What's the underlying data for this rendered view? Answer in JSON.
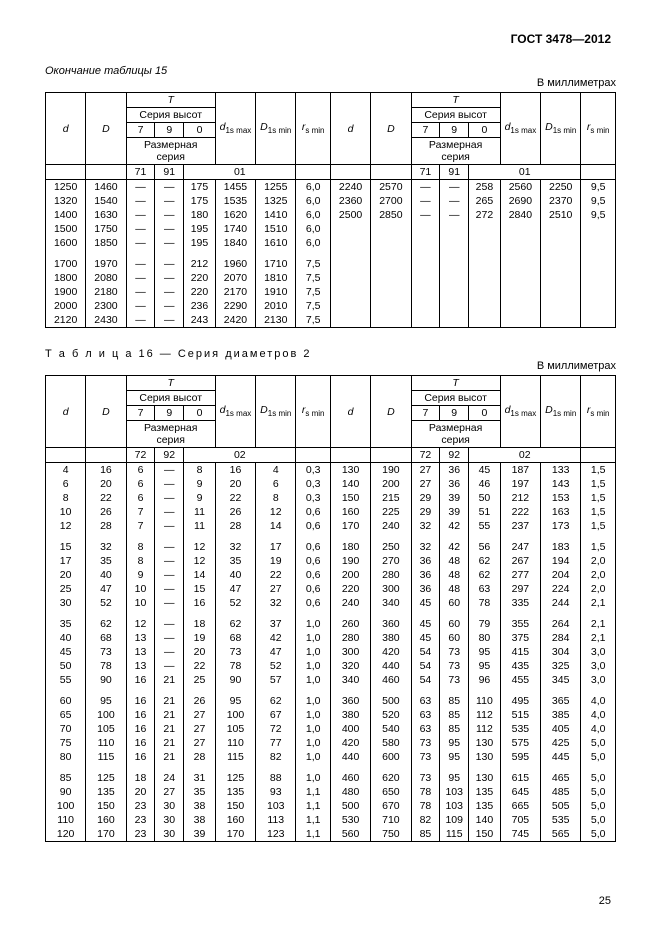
{
  "doc_id": "ГОСТ 3478—2012",
  "cap15": "Окончание таблицы 15",
  "units": "В миллиметрах",
  "t16_caption": "Т а б л и ц а  16 — Серия диаметров 2",
  "hdr": {
    "d": "d",
    "D": "D",
    "T": "T",
    "d1smax": "d₁ₛ ₘₐₓ",
    "D1smin": "D₁ₛ ₘᵢₙ",
    "rsmin": "rₛ ₘᵢₙ",
    "series_h": "Серия высот",
    "series_d": "Размерная серия",
    "c7": "7",
    "c9": "9",
    "c0": "0",
    "c71": "71",
    "c91": "91",
    "c01": "01",
    "c72": "72",
    "c92": "92",
    "c02": "02"
  },
  "t15": {
    "left": [
      {
        "d": "1250",
        "D": "1460",
        "c71": "—",
        "c91": "—",
        "c01": "175",
        "d1": "1455",
        "D1": "1255",
        "r": "6,0",
        "g": true
      },
      {
        "d": "1320",
        "D": "1540",
        "c71": "—",
        "c91": "—",
        "c01": "175",
        "d1": "1535",
        "D1": "1325",
        "r": "6,0"
      },
      {
        "d": "1400",
        "D": "1630",
        "c71": "—",
        "c91": "—",
        "c01": "180",
        "d1": "1620",
        "D1": "1410",
        "r": "6,0"
      },
      {
        "d": "1500",
        "D": "1750",
        "c71": "—",
        "c91": "—",
        "c01": "195",
        "d1": "1740",
        "D1": "1510",
        "r": "6,0"
      },
      {
        "d": "1600",
        "D": "1850",
        "c71": "—",
        "c91": "—",
        "c01": "195",
        "d1": "1840",
        "D1": "1610",
        "r": "6,0"
      },
      {
        "sp": true
      },
      {
        "d": "1700",
        "D": "1970",
        "c71": "—",
        "c91": "—",
        "c01": "212",
        "d1": "1960",
        "D1": "1710",
        "r": "7,5"
      },
      {
        "d": "1800",
        "D": "2080",
        "c71": "—",
        "c91": "—",
        "c01": "220",
        "d1": "2070",
        "D1": "1810",
        "r": "7,5"
      },
      {
        "d": "1900",
        "D": "2180",
        "c71": "—",
        "c91": "—",
        "c01": "220",
        "d1": "2170",
        "D1": "1910",
        "r": "7,5"
      },
      {
        "d": "2000",
        "D": "2300",
        "c71": "—",
        "c91": "—",
        "c01": "236",
        "d1": "2290",
        "D1": "2010",
        "r": "7,5"
      },
      {
        "d": "2120",
        "D": "2430",
        "c71": "—",
        "c91": "—",
        "c01": "243",
        "d1": "2420",
        "D1": "2130",
        "r": "7,5",
        "last": true
      }
    ],
    "right": [
      {
        "d": "2240",
        "D": "2570",
        "c71": "—",
        "c91": "—",
        "c01": "258",
        "d1": "2560",
        "D1": "2250",
        "r": "9,5",
        "g": true
      },
      {
        "d": "2360",
        "D": "2700",
        "c71": "—",
        "c91": "—",
        "c01": "265",
        "d1": "2690",
        "D1": "2370",
        "r": "9,5"
      },
      {
        "d": "2500",
        "D": "2850",
        "c71": "—",
        "c91": "—",
        "c01": "272",
        "d1": "2840",
        "D1": "2510",
        "r": "9,5"
      },
      {
        "d": "",
        "D": "",
        "c71": "",
        "c91": "",
        "c01": "",
        "d1": "",
        "D1": "",
        "r": ""
      },
      {
        "d": "",
        "D": "",
        "c71": "",
        "c91": "",
        "c01": "",
        "d1": "",
        "D1": "",
        "r": ""
      },
      {
        "sp": true
      },
      {
        "d": "",
        "D": "",
        "c71": "",
        "c91": "",
        "c01": "",
        "d1": "",
        "D1": "",
        "r": ""
      },
      {
        "d": "",
        "D": "",
        "c71": "",
        "c91": "",
        "c01": "",
        "d1": "",
        "D1": "",
        "r": ""
      },
      {
        "d": "",
        "D": "",
        "c71": "",
        "c91": "",
        "c01": "",
        "d1": "",
        "D1": "",
        "r": ""
      },
      {
        "d": "",
        "D": "",
        "c71": "",
        "c91": "",
        "c01": "",
        "d1": "",
        "D1": "",
        "r": ""
      },
      {
        "d": "",
        "D": "",
        "c71": "",
        "c91": "",
        "c01": "",
        "d1": "",
        "D1": "",
        "r": "",
        "last": true
      }
    ]
  },
  "t16": {
    "left": [
      {
        "d": "4",
        "D": "16",
        "c72": "6",
        "c92": "—",
        "c02": "8",
        "d1": "16",
        "D1": "4",
        "r": "0,3",
        "g": true
      },
      {
        "d": "6",
        "D": "20",
        "c72": "6",
        "c92": "—",
        "c02": "9",
        "d1": "20",
        "D1": "6",
        "r": "0,3"
      },
      {
        "d": "8",
        "D": "22",
        "c72": "6",
        "c92": "—",
        "c02": "9",
        "d1": "22",
        "D1": "8",
        "r": "0,3"
      },
      {
        "d": "10",
        "D": "26",
        "c72": "7",
        "c92": "—",
        "c02": "11",
        "d1": "26",
        "D1": "12",
        "r": "0,6"
      },
      {
        "d": "12",
        "D": "28",
        "c72": "7",
        "c92": "—",
        "c02": "11",
        "d1": "28",
        "D1": "14",
        "r": "0,6"
      },
      {
        "sp": true
      },
      {
        "d": "15",
        "D": "32",
        "c72": "8",
        "c92": "—",
        "c02": "12",
        "d1": "32",
        "D1": "17",
        "r": "0,6"
      },
      {
        "d": "17",
        "D": "35",
        "c72": "8",
        "c92": "—",
        "c02": "12",
        "d1": "35",
        "D1": "19",
        "r": "0,6"
      },
      {
        "d": "20",
        "D": "40",
        "c72": "9",
        "c92": "—",
        "c02": "14",
        "d1": "40",
        "D1": "22",
        "r": "0,6"
      },
      {
        "d": "25",
        "D": "47",
        "c72": "10",
        "c92": "—",
        "c02": "15",
        "d1": "47",
        "D1": "27",
        "r": "0,6"
      },
      {
        "d": "30",
        "D": "52",
        "c72": "10",
        "c92": "—",
        "c02": "16",
        "d1": "52",
        "D1": "32",
        "r": "0,6"
      },
      {
        "sp": true
      },
      {
        "d": "35",
        "D": "62",
        "c72": "12",
        "c92": "—",
        "c02": "18",
        "d1": "62",
        "D1": "37",
        "r": "1,0"
      },
      {
        "d": "40",
        "D": "68",
        "c72": "13",
        "c92": "—",
        "c02": "19",
        "d1": "68",
        "D1": "42",
        "r": "1,0"
      },
      {
        "d": "45",
        "D": "73",
        "c72": "13",
        "c92": "—",
        "c02": "20",
        "d1": "73",
        "D1": "47",
        "r": "1,0"
      },
      {
        "d": "50",
        "D": "78",
        "c72": "13",
        "c92": "—",
        "c02": "22",
        "d1": "78",
        "D1": "52",
        "r": "1,0"
      },
      {
        "d": "55",
        "D": "90",
        "c72": "16",
        "c92": "21",
        "c02": "25",
        "d1": "90",
        "D1": "57",
        "r": "1,0"
      },
      {
        "sp": true
      },
      {
        "d": "60",
        "D": "95",
        "c72": "16",
        "c92": "21",
        "c02": "26",
        "d1": "95",
        "D1": "62",
        "r": "1,0"
      },
      {
        "d": "65",
        "D": "100",
        "c72": "16",
        "c92": "21",
        "c02": "27",
        "d1": "100",
        "D1": "67",
        "r": "1,0"
      },
      {
        "d": "70",
        "D": "105",
        "c72": "16",
        "c92": "21",
        "c02": "27",
        "d1": "105",
        "D1": "72",
        "r": "1,0"
      },
      {
        "d": "75",
        "D": "110",
        "c72": "16",
        "c92": "21",
        "c02": "27",
        "d1": "110",
        "D1": "77",
        "r": "1,0"
      },
      {
        "d": "80",
        "D": "115",
        "c72": "16",
        "c92": "21",
        "c02": "28",
        "d1": "115",
        "D1": "82",
        "r": "1,0"
      },
      {
        "sp": true
      },
      {
        "d": "85",
        "D": "125",
        "c72": "18",
        "c92": "24",
        "c02": "31",
        "d1": "125",
        "D1": "88",
        "r": "1,0"
      },
      {
        "d": "90",
        "D": "135",
        "c72": "20",
        "c92": "27",
        "c02": "35",
        "d1": "135",
        "D1": "93",
        "r": "1,1"
      },
      {
        "d": "100",
        "D": "150",
        "c72": "23",
        "c92": "30",
        "c02": "38",
        "d1": "150",
        "D1": "103",
        "r": "1,1"
      },
      {
        "d": "110",
        "D": "160",
        "c72": "23",
        "c92": "30",
        "c02": "38",
        "d1": "160",
        "D1": "113",
        "r": "1,1"
      },
      {
        "d": "120",
        "D": "170",
        "c72": "23",
        "c92": "30",
        "c02": "39",
        "d1": "170",
        "D1": "123",
        "r": "1,1",
        "last": true
      }
    ],
    "right": [
      {
        "d": "130",
        "D": "190",
        "c72": "27",
        "c92": "36",
        "c02": "45",
        "d1": "187",
        "D1": "133",
        "r": "1,5",
        "g": true
      },
      {
        "d": "140",
        "D": "200",
        "c72": "27",
        "c92": "36",
        "c02": "46",
        "d1": "197",
        "D1": "143",
        "r": "1,5"
      },
      {
        "d": "150",
        "D": "215",
        "c72": "29",
        "c92": "39",
        "c02": "50",
        "d1": "212",
        "D1": "153",
        "r": "1,5"
      },
      {
        "d": "160",
        "D": "225",
        "c72": "29",
        "c92": "39",
        "c02": "51",
        "d1": "222",
        "D1": "163",
        "r": "1,5"
      },
      {
        "d": "170",
        "D": "240",
        "c72": "32",
        "c92": "42",
        "c02": "55",
        "d1": "237",
        "D1": "173",
        "r": "1,5"
      },
      {
        "sp": true
      },
      {
        "d": "180",
        "D": "250",
        "c72": "32",
        "c92": "42",
        "c02": "56",
        "d1": "247",
        "D1": "183",
        "r": "1,5"
      },
      {
        "d": "190",
        "D": "270",
        "c72": "36",
        "c92": "48",
        "c02": "62",
        "d1": "267",
        "D1": "194",
        "r": "2,0"
      },
      {
        "d": "200",
        "D": "280",
        "c72": "36",
        "c92": "48",
        "c02": "62",
        "d1": "277",
        "D1": "204",
        "r": "2,0"
      },
      {
        "d": "220",
        "D": "300",
        "c72": "36",
        "c92": "48",
        "c02": "63",
        "d1": "297",
        "D1": "224",
        "r": "2,0"
      },
      {
        "d": "240",
        "D": "340",
        "c72": "45",
        "c92": "60",
        "c02": "78",
        "d1": "335",
        "D1": "244",
        "r": "2,1"
      },
      {
        "sp": true
      },
      {
        "d": "260",
        "D": "360",
        "c72": "45",
        "c92": "60",
        "c02": "79",
        "d1": "355",
        "D1": "264",
        "r": "2,1"
      },
      {
        "d": "280",
        "D": "380",
        "c72": "45",
        "c92": "60",
        "c02": "80",
        "d1": "375",
        "D1": "284",
        "r": "2,1"
      },
      {
        "d": "300",
        "D": "420",
        "c72": "54",
        "c92": "73",
        "c02": "95",
        "d1": "415",
        "D1": "304",
        "r": "3,0"
      },
      {
        "d": "320",
        "D": "440",
        "c72": "54",
        "c92": "73",
        "c02": "95",
        "d1": "435",
        "D1": "325",
        "r": "3,0"
      },
      {
        "d": "340",
        "D": "460",
        "c72": "54",
        "c92": "73",
        "c02": "96",
        "d1": "455",
        "D1": "345",
        "r": "3,0"
      },
      {
        "sp": true
      },
      {
        "d": "360",
        "D": "500",
        "c72": "63",
        "c92": "85",
        "c02": "110",
        "d1": "495",
        "D1": "365",
        "r": "4,0"
      },
      {
        "d": "380",
        "D": "520",
        "c72": "63",
        "c92": "85",
        "c02": "112",
        "d1": "515",
        "D1": "385",
        "r": "4,0"
      },
      {
        "d": "400",
        "D": "540",
        "c72": "63",
        "c92": "85",
        "c02": "112",
        "d1": "535",
        "D1": "405",
        "r": "4,0"
      },
      {
        "d": "420",
        "D": "580",
        "c72": "73",
        "c92": "95",
        "c02": "130",
        "d1": "575",
        "D1": "425",
        "r": "5,0"
      },
      {
        "d": "440",
        "D": "600",
        "c72": "73",
        "c92": "95",
        "c02": "130",
        "d1": "595",
        "D1": "445",
        "r": "5,0"
      },
      {
        "sp": true
      },
      {
        "d": "460",
        "D": "620",
        "c72": "73",
        "c92": "95",
        "c02": "130",
        "d1": "615",
        "D1": "465",
        "r": "5,0"
      },
      {
        "d": "480",
        "D": "650",
        "c72": "78",
        "c92": "103",
        "c02": "135",
        "d1": "645",
        "D1": "485",
        "r": "5,0"
      },
      {
        "d": "500",
        "D": "670",
        "c72": "78",
        "c92": "103",
        "c02": "135",
        "d1": "665",
        "D1": "505",
        "r": "5,0"
      },
      {
        "d": "530",
        "D": "710",
        "c72": "82",
        "c92": "109",
        "c02": "140",
        "d1": "705",
        "D1": "535",
        "r": "5,0"
      },
      {
        "d": "560",
        "D": "750",
        "c72": "85",
        "c92": "115",
        "c02": "150",
        "d1": "745",
        "D1": "565",
        "r": "5,0",
        "last": true
      }
    ]
  },
  "pagenum": "25"
}
